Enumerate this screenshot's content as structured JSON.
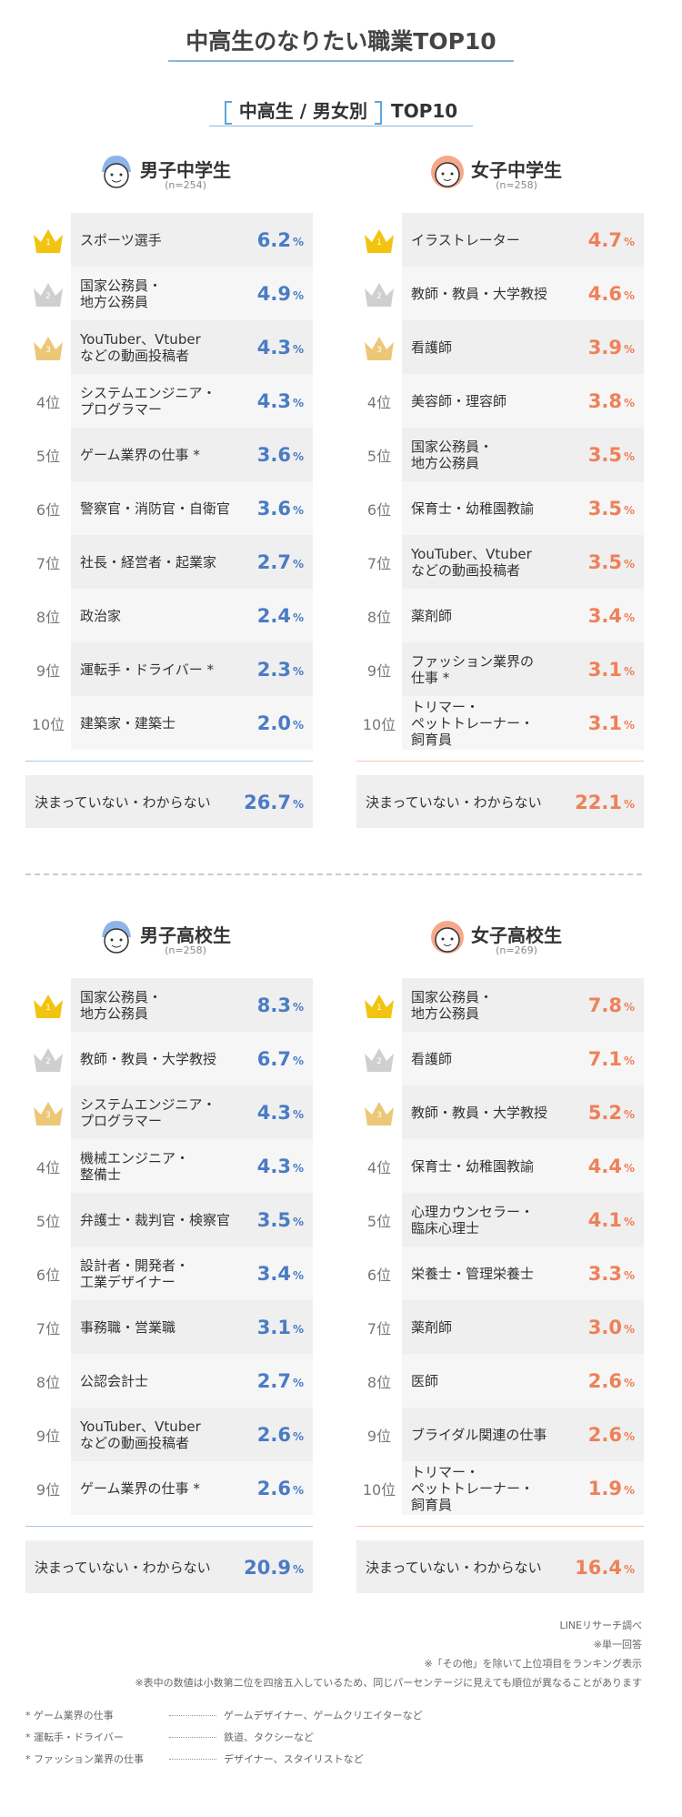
{
  "header": {
    "title": "中高生のなりたい職業TOP10",
    "subtitle_bracket": "中高生 / 男女別",
    "subtitle": "TOP10"
  },
  "unit": "%",
  "groups": [
    {
      "name": "男子中学生",
      "n": "(n=254)",
      "color": "#4a7cc4",
      "rows": [
        {
          "rank": "1",
          "label": "スポーツ選手",
          "value": "6.2"
        },
        {
          "rank": "2",
          "label": "国家公務員・\n地方公務員",
          "value": "4.9"
        },
        {
          "rank": "3",
          "label": "YouTuber、Vtuber\nなどの動画投稿者",
          "value": "4.3"
        },
        {
          "rank": "4位",
          "label": "システムエンジニア・\nプログラマー",
          "value": "4.3"
        },
        {
          "rank": "5位",
          "label": "ゲーム業界の仕事 *",
          "value": "3.6"
        },
        {
          "rank": "6位",
          "label": "警察官・消防官・自衛官",
          "value": "3.6"
        },
        {
          "rank": "7位",
          "label": "社長・経営者・起業家",
          "value": "2.7"
        },
        {
          "rank": "8位",
          "label": "政治家",
          "value": "2.4"
        },
        {
          "rank": "9位",
          "label": "運転手・ドライバー *",
          "value": "2.3"
        },
        {
          "rank": "10位",
          "label": "建築家・建築士",
          "value": "2.0"
        }
      ],
      "undecided": {
        "label": "決まっていない・わからない",
        "value": "26.7"
      }
    },
    {
      "name": "女子中学生",
      "n": "(n=258)",
      "color": "#ee8159",
      "rows": [
        {
          "rank": "1",
          "label": "イラストレーター",
          "value": "4.7"
        },
        {
          "rank": "2",
          "label": "教師・教員・大学教授",
          "value": "4.6"
        },
        {
          "rank": "3",
          "label": "看護師",
          "value": "3.9"
        },
        {
          "rank": "4位",
          "label": "美容師・理容師",
          "value": "3.8"
        },
        {
          "rank": "5位",
          "label": "国家公務員・\n地方公務員",
          "value": "3.5"
        },
        {
          "rank": "6位",
          "label": "保育士・幼稚園教諭",
          "value": "3.5"
        },
        {
          "rank": "7位",
          "label": "YouTuber、Vtuber\nなどの動画投稿者",
          "value": "3.5"
        },
        {
          "rank": "8位",
          "label": "薬剤師",
          "value": "3.4"
        },
        {
          "rank": "9位",
          "label": "ファッション業界の\n仕事 *",
          "value": "3.1"
        },
        {
          "rank": "10位",
          "label": "トリマー・\nペットトレーナー・\n飼育員",
          "value": "3.1"
        }
      ],
      "undecided": {
        "label": "決まっていない・わからない",
        "value": "22.1"
      }
    },
    {
      "name": "男子高校生",
      "n": "(n=258)",
      "color": "#4a7cc4",
      "rows": [
        {
          "rank": "1",
          "label": "国家公務員・\n地方公務員",
          "value": "8.3"
        },
        {
          "rank": "2",
          "label": "教師・教員・大学教授",
          "value": "6.7"
        },
        {
          "rank": "3",
          "label": "システムエンジニア・\nプログラマー",
          "value": "4.3"
        },
        {
          "rank": "4位",
          "label": "機械エンジニア・\n整備士",
          "value": "4.3"
        },
        {
          "rank": "5位",
          "label": "弁護士・裁判官・検察官",
          "value": "3.5"
        },
        {
          "rank": "6位",
          "label": "設計者・開発者・\n工業デザイナー",
          "value": "3.4"
        },
        {
          "rank": "7位",
          "label": "事務職・営業職",
          "value": "3.1"
        },
        {
          "rank": "8位",
          "label": "公認会計士",
          "value": "2.7"
        },
        {
          "rank": "9位",
          "label": "YouTuber、Vtuber\nなどの動画投稿者",
          "value": "2.6"
        },
        {
          "rank": "9位",
          "label": "ゲーム業界の仕事 *",
          "value": "2.6"
        }
      ],
      "undecided": {
        "label": "決まっていない・わからない",
        "value": "20.9"
      }
    },
    {
      "name": "女子高校生",
      "n": "(n=269)",
      "color": "#ee8159",
      "rows": [
        {
          "rank": "1",
          "label": "国家公務員・\n地方公務員",
          "value": "7.8"
        },
        {
          "rank": "2",
          "label": "看護師",
          "value": "7.1"
        },
        {
          "rank": "3",
          "label": "教師・教員・大学教授",
          "value": "5.2"
        },
        {
          "rank": "4位",
          "label": "保育士・幼稚園教諭",
          "value": "4.4"
        },
        {
          "rank": "5位",
          "label": "心理カウンセラー・\n臨床心理士",
          "value": "4.1"
        },
        {
          "rank": "6位",
          "label": "栄養士・管理栄養士",
          "value": "3.3"
        },
        {
          "rank": "7位",
          "label": "薬剤師",
          "value": "3.0"
        },
        {
          "rank": "8位",
          "label": "医師",
          "value": "2.6"
        },
        {
          "rank": "9位",
          "label": "ブライダル関連の仕事",
          "value": "2.6"
        },
        {
          "rank": "10位",
          "label": "トリマー・\nペットトレーナー・\n飼育員",
          "value": "1.9"
        }
      ],
      "undecided": {
        "label": "決まっていない・わからない",
        "value": "16.4"
      }
    }
  ],
  "notes": [
    "LINEリサーチ調べ",
    "※単一回答",
    "※「その他」を除いて上位項目をランキング表示",
    "※表中の数値は小数第二位を四捨五入しているため、同じパーセンテージに見えても順位が異なることがあります"
  ],
  "footnotes": [
    {
      "term": "* ゲーム業界の仕事",
      "desc": "ゲームデザイナー、ゲームクリエイターなど"
    },
    {
      "term": "* 運転手・ドライバー",
      "desc": "鉄道、タクシーなど"
    },
    {
      "term": "* ファッション業界の仕事",
      "desc": "デザイナー、スタイリストなど"
    }
  ]
}
